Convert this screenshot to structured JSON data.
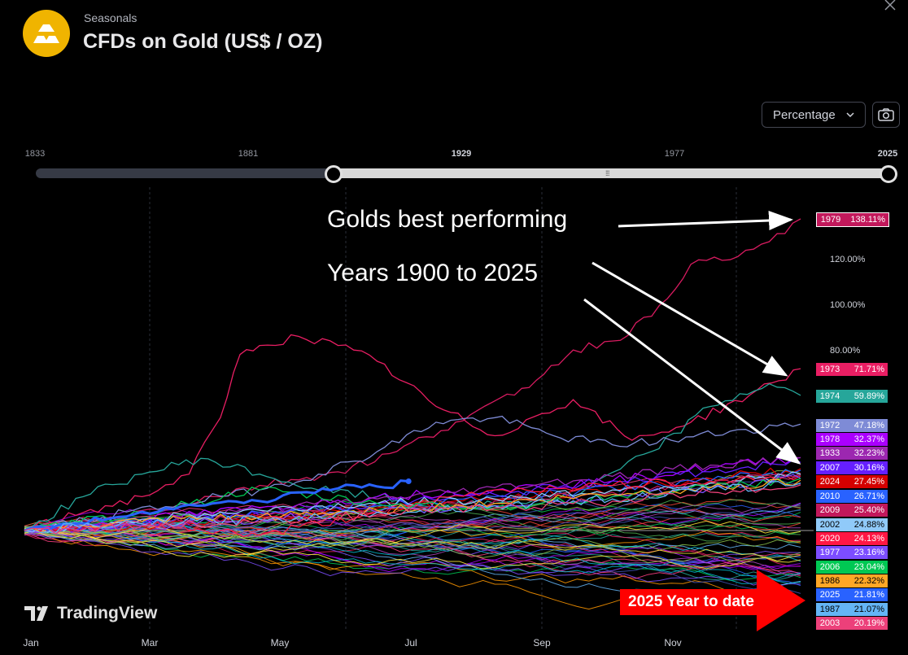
{
  "header": {
    "subtitle": "Seasonals",
    "title": "CFDs on Gold (US$ / OZ)"
  },
  "controls": {
    "mode": "Percentage"
  },
  "range_slider": {
    "ticks": [
      {
        "label": "1833",
        "bold": false
      },
      {
        "label": "1881",
        "bold": false
      },
      {
        "label": "1929",
        "bold": true
      },
      {
        "label": "1977",
        "bold": false
      },
      {
        "label": "2025",
        "bold": true
      }
    ],
    "selected_from": 1900,
    "selected_to": 2025
  },
  "watermark": "TradingView",
  "annotations": {
    "line1": "Golds best performing",
    "line2": "Years 1900 to 2025",
    "callout": "2025 Year to date"
  },
  "chart_data": {
    "type": "line",
    "x_labels": [
      "Jan",
      "Mar",
      "May",
      "Jul",
      "Sep",
      "Nov"
    ],
    "y_ticks": [
      "120.00%",
      "100.00%",
      "80.00%"
    ],
    "series": [
      {
        "name": "1979",
        "final": "138.11%",
        "color": "#d81b60",
        "points": [
          [
            0,
            0
          ],
          [
            20,
            5
          ],
          [
            40,
            12
          ],
          [
            60,
            20
          ],
          [
            80,
            26
          ],
          [
            95,
            35
          ],
          [
            110,
            48
          ],
          [
            125,
            60
          ],
          [
            140,
            80
          ],
          [
            150,
            84
          ],
          [
            160,
            95
          ],
          [
            170,
            118
          ],
          [
            180,
            120
          ],
          [
            190,
            128
          ],
          [
            198,
            138.11
          ]
        ]
      },
      {
        "name": "1973",
        "final": "71.71%",
        "color": "#e91e63",
        "points": [
          [
            0,
            0
          ],
          [
            15,
            8
          ],
          [
            30,
            15
          ],
          [
            42,
            25
          ],
          [
            50,
            50
          ],
          [
            55,
            78
          ],
          [
            60,
            82
          ],
          [
            70,
            86
          ],
          [
            80,
            82
          ],
          [
            90,
            75
          ],
          [
            105,
            55
          ],
          [
            120,
            42
          ],
          [
            140,
            58
          ],
          [
            155,
            40
          ],
          [
            170,
            48
          ],
          [
            185,
            60
          ],
          [
            198,
            71.71
          ]
        ]
      },
      {
        "name": "1974",
        "final": "59.89%",
        "color": "#26a69a",
        "points": [
          [
            0,
            0
          ],
          [
            15,
            15
          ],
          [
            30,
            25
          ],
          [
            45,
            32
          ],
          [
            60,
            25
          ],
          [
            75,
            18
          ],
          [
            90,
            15
          ],
          [
            105,
            10
          ],
          [
            120,
            12
          ],
          [
            140,
            15
          ],
          [
            160,
            35
          ],
          [
            175,
            55
          ],
          [
            190,
            65
          ],
          [
            198,
            59.89
          ]
        ]
      },
      {
        "name": "1972",
        "final": "47.18%",
        "color": "#7e8bd6",
        "points": [
          [
            0,
            0
          ],
          [
            20,
            6
          ],
          [
            40,
            12
          ],
          [
            60,
            18
          ],
          [
            75,
            25
          ],
          [
            90,
            35
          ],
          [
            105,
            48
          ],
          [
            120,
            50
          ],
          [
            135,
            42
          ],
          [
            150,
            38
          ],
          [
            165,
            40
          ],
          [
            180,
            44
          ],
          [
            198,
            47.18
          ]
        ]
      },
      {
        "name": "1978",
        "final": "32.37%",
        "color": "#aa00ff",
        "points": [
          [
            0,
            0
          ],
          [
            30,
            5
          ],
          [
            60,
            10
          ],
          [
            90,
            15
          ],
          [
            120,
            18
          ],
          [
            150,
            22
          ],
          [
            175,
            28
          ],
          [
            198,
            32.37
          ]
        ]
      },
      {
        "name": "1933",
        "final": "32.23%",
        "color": "#9c27b0",
        "points": [
          [
            0,
            0
          ],
          [
            30,
            4
          ],
          [
            60,
            9
          ],
          [
            90,
            14
          ],
          [
            120,
            19
          ],
          [
            150,
            24
          ],
          [
            175,
            29
          ],
          [
            198,
            32.23
          ]
        ]
      },
      {
        "name": "2007",
        "final": "30.16%",
        "color": "#651fff",
        "points": [
          [
            0,
            0
          ],
          [
            30,
            3
          ],
          [
            60,
            7
          ],
          [
            90,
            12
          ],
          [
            120,
            16
          ],
          [
            150,
            22
          ],
          [
            175,
            26
          ],
          [
            198,
            30.16
          ]
        ]
      },
      {
        "name": "2024",
        "final": "27.45%",
        "color": "#d50000",
        "points": [
          [
            0,
            0
          ],
          [
            30,
            2
          ],
          [
            60,
            6
          ],
          [
            90,
            10
          ],
          [
            120,
            14
          ],
          [
            150,
            18
          ],
          [
            175,
            23
          ],
          [
            198,
            27.45
          ]
        ]
      },
      {
        "name": "2010",
        "final": "26.71%",
        "color": "#2962ff",
        "points": [
          [
            0,
            0
          ],
          [
            30,
            4
          ],
          [
            60,
            8
          ],
          [
            90,
            11
          ],
          [
            120,
            15
          ],
          [
            150,
            19
          ],
          [
            175,
            22
          ],
          [
            198,
            26.71
          ]
        ]
      },
      {
        "name": "2009",
        "final": "25.40%",
        "color": "#c2185b",
        "points": [
          [
            0,
            0
          ],
          [
            30,
            3
          ],
          [
            60,
            7
          ],
          [
            90,
            9
          ],
          [
            120,
            13
          ],
          [
            150,
            17
          ],
          [
            175,
            21
          ],
          [
            198,
            25.4
          ]
        ]
      },
      {
        "name": "2002",
        "final": "24.88%",
        "color": "#90caf9",
        "points": [
          [
            0,
            0
          ],
          [
            30,
            5
          ],
          [
            60,
            9
          ],
          [
            90,
            12
          ],
          [
            120,
            14
          ],
          [
            150,
            18
          ],
          [
            175,
            21
          ],
          [
            198,
            24.88
          ]
        ]
      },
      {
        "name": "2020",
        "final": "24.13%",
        "color": "#ff1744",
        "points": [
          [
            0,
            0
          ],
          [
            30,
            3
          ],
          [
            60,
            -2
          ],
          [
            90,
            8
          ],
          [
            120,
            18
          ],
          [
            150,
            20
          ],
          [
            175,
            22
          ],
          [
            198,
            24.13
          ]
        ]
      },
      {
        "name": "1977",
        "final": "23.16%",
        "color": "#7c4dff",
        "points": [
          [
            0,
            0
          ],
          [
            30,
            2
          ],
          [
            60,
            5
          ],
          [
            90,
            8
          ],
          [
            120,
            11
          ],
          [
            150,
            15
          ],
          [
            175,
            19
          ],
          [
            198,
            23.16
          ]
        ]
      },
      {
        "name": "2006",
        "final": "23.04%",
        "color": "#00c853",
        "points": [
          [
            0,
            0
          ],
          [
            30,
            8
          ],
          [
            60,
            18
          ],
          [
            90,
            12
          ],
          [
            120,
            10
          ],
          [
            150,
            15
          ],
          [
            175,
            19
          ],
          [
            198,
            23.04
          ]
        ]
      },
      {
        "name": "1986",
        "final": "22.32%",
        "color": "#ffa726",
        "points": [
          [
            0,
            0
          ],
          [
            30,
            4
          ],
          [
            60,
            6
          ],
          [
            90,
            9
          ],
          [
            120,
            12
          ],
          [
            150,
            16
          ],
          [
            175,
            19
          ],
          [
            198,
            22.32
          ]
        ]
      },
      {
        "name": "2025",
        "final": "21.81%",
        "color": "#2962ff",
        "points": [
          [
            0,
            0
          ],
          [
            12,
            3
          ],
          [
            24,
            6
          ],
          [
            36,
            10
          ],
          [
            48,
            12
          ],
          [
            60,
            13
          ],
          [
            72,
            17
          ],
          [
            84,
            20
          ],
          [
            92,
            19
          ],
          [
            98,
            21.81
          ]
        ]
      },
      {
        "name": "1987",
        "final": "21.07%",
        "color": "#64b5f6",
        "points": [
          [
            0,
            0
          ],
          [
            30,
            3
          ],
          [
            60,
            5
          ],
          [
            90,
            8
          ],
          [
            120,
            11
          ],
          [
            150,
            14
          ],
          [
            175,
            18
          ],
          [
            198,
            21.07
          ]
        ]
      },
      {
        "name": "2003",
        "final": "20.19%",
        "color": "#ec407a",
        "points": [
          [
            0,
            0
          ],
          [
            30,
            2
          ],
          [
            60,
            4
          ],
          [
            90,
            7
          ],
          [
            120,
            10
          ],
          [
            150,
            13
          ],
          [
            175,
            17
          ],
          [
            198,
            20.19
          ]
        ]
      }
    ],
    "background_series_colors": [
      "#2962ff",
      "#26a69a",
      "#e91e63",
      "#00c853",
      "#aa00ff",
      "#ff9800",
      "#7c4dff",
      "#f44336",
      "#64b5f6",
      "#ab47bc",
      "#4caf50",
      "#ff4081",
      "#3f51b5",
      "#00bcd4",
      "#ffeb3b",
      "#8bc34a"
    ],
    "x_range": [
      0,
      198
    ],
    "y_range": [
      -30,
      145
    ]
  }
}
